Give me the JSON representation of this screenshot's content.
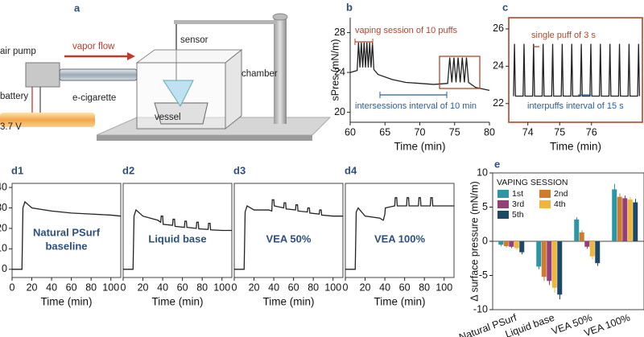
{
  "diagram": {
    "panel": "a",
    "labels": [
      "air pump",
      "vapor flow",
      "sensor",
      "chamber",
      "battery",
      "e-cigarette",
      "vessel",
      "3.7 V"
    ]
  },
  "chart_data": [
    {
      "type": "line",
      "panel": "b",
      "ylabel": "sPres (mN/m)",
      "xlabel": "Time (min)",
      "xlim": [
        60,
        80
      ],
      "xticks": [
        60,
        65,
        70,
        75,
        80
      ],
      "ylim": [
        19,
        29.5
      ],
      "yticks": [
        20,
        24,
        28
      ],
      "color": "#222222",
      "annotations": [
        "vaping session of 10 puffs",
        "intersessions interval of 10 min"
      ],
      "x": [
        60,
        61,
        61.2,
        61.4,
        61.6,
        61.8,
        62,
        62.2,
        62.4,
        62.6,
        62.8,
        63,
        63.2,
        63.4,
        64,
        66,
        68,
        70,
        72,
        74,
        74.3,
        74.6,
        74.9,
        75.2,
        75.5,
        75.8,
        76.1,
        76.4,
        76.7,
        77,
        78,
        80
      ],
      "values": [
        24,
        24.2,
        27,
        24.5,
        27,
        24.5,
        27,
        24.5,
        27,
        24.5,
        27,
        24.5,
        27,
        24.3,
        23.8,
        23.3,
        23,
        22.9,
        22.8,
        22.9,
        25.5,
        23,
        25.5,
        23,
        25.5,
        23,
        25.5,
        23,
        25.5,
        23,
        22.5,
        22.2
      ]
    },
    {
      "type": "line",
      "panel": "c",
      "xlabel": "Time (min)",
      "xlim": [
        73.4,
        77.6
      ],
      "xticks": [
        74,
        75,
        76
      ],
      "ylim": [
        21,
        26.6
      ],
      "yticks": [
        22,
        24,
        26
      ],
      "color": "#222222",
      "annotations": [
        "single puff of 3 s",
        "interpuffs interval of 15 s"
      ],
      "x": [
        73.55,
        73.58,
        73.61,
        73.85,
        73.88,
        73.91,
        74.15,
        74.18,
        74.21,
        74.45,
        74.48,
        74.51,
        74.75,
        74.78,
        74.81,
        75.05,
        75.08,
        75.11,
        75.35,
        75.38,
        75.41,
        75.65,
        75.68,
        75.71,
        75.95,
        75.98,
        76.01,
        76.25,
        76.28,
        76.31,
        76.55,
        76.58,
        76.61,
        76.85,
        76.88,
        76.91,
        77.15,
        77.18,
        77.21,
        77.45,
        77.48,
        77.51
      ],
      "values": [
        22.4,
        25.2,
        22.4,
        22.4,
        25.2,
        22.4,
        22.4,
        25.2,
        22.4,
        22.4,
        25.2,
        22.4,
        22.4,
        25.2,
        22.4,
        22.4,
        25.2,
        22.4,
        22.4,
        25.2,
        22.4,
        22.4,
        25.2,
        22.4,
        22.4,
        25.2,
        22.4,
        22.4,
        25.2,
        22.4,
        22.4,
        25.2,
        22.4,
        22.4,
        25.2,
        22.4,
        22.4,
        25.2,
        22.4,
        22.4,
        25.2,
        22.4
      ]
    },
    {
      "type": "line",
      "panel": "d1",
      "xlabel": "Time (min)",
      "xlim": [
        0,
        110
      ],
      "xticks": [
        0,
        20,
        40,
        60,
        80,
        100
      ],
      "ylim": [
        -4,
        42
      ],
      "yticks": [
        0,
        10,
        20,
        30,
        40
      ],
      "color": "#222222",
      "annotation_lines": [
        "Natural PSurf",
        "baseline"
      ],
      "x": [
        0,
        10,
        11,
        13,
        20,
        40,
        60,
        80,
        100,
        110
      ],
      "values": [
        0,
        0,
        30,
        33,
        30,
        28.5,
        27.5,
        27,
        26.5,
        26
      ]
    },
    {
      "type": "line",
      "panel": "d2",
      "xlabel": "Time (min)",
      "xlim": [
        0,
        110
      ],
      "xticks": [
        0,
        20,
        40,
        60,
        80,
        100
      ],
      "ylim": [
        -4,
        42
      ],
      "color": "#222222",
      "annotation_lines": [
        "Liquid base"
      ],
      "x": [
        0,
        10,
        11,
        13,
        20,
        35,
        38,
        38.5,
        40,
        40.5,
        50,
        50.5,
        52,
        52.5,
        62,
        62.5,
        64,
        64.5,
        74,
        74.5,
        76,
        76.5,
        86,
        86.5,
        88,
        88.5,
        100,
        110
      ],
      "values": [
        0,
        0,
        26,
        29,
        26,
        24,
        23,
        26,
        26,
        22,
        21.5,
        24.5,
        24.5,
        21,
        20.5,
        23.5,
        23.5,
        20.5,
        20,
        23,
        23,
        19.8,
        19.5,
        22.5,
        22.5,
        19.3,
        19,
        19
      ]
    },
    {
      "type": "line",
      "panel": "d3",
      "xlabel": "Time (min)",
      "xlim": [
        0,
        110
      ],
      "xticks": [
        0,
        20,
        40,
        60,
        80,
        100
      ],
      "ylim": [
        -4,
        42
      ],
      "color": "#222222",
      "annotation_lines": [
        "VEA 50%"
      ],
      "x": [
        0,
        10,
        11,
        13,
        20,
        35,
        38,
        38.5,
        40,
        40.5,
        50,
        50.5,
        52,
        52.5,
        62,
        62.5,
        64,
        64.5,
        74,
        74.5,
        76,
        76.5,
        86,
        86.5,
        88,
        88.5,
        100,
        110
      ],
      "values": [
        0,
        0,
        28,
        31,
        29,
        29,
        28.5,
        34,
        34,
        31,
        30,
        32.5,
        32.5,
        29.5,
        29,
        31.5,
        31.5,
        28.5,
        28,
        30,
        30,
        27.5,
        27,
        29,
        29,
        26.5,
        26,
        26
      ]
    },
    {
      "type": "line",
      "panel": "d4",
      "xlabel": "Time (min)",
      "xlim": [
        0,
        110
      ],
      "xticks": [
        0,
        20,
        40,
        60,
        80,
        100
      ],
      "ylim": [
        -4,
        42
      ],
      "color": "#222222",
      "annotation_lines": [
        "VEA 100%"
      ],
      "x": [
        0,
        10,
        11,
        13,
        20,
        35,
        38,
        38.5,
        40,
        40.5,
        50,
        50.5,
        52,
        52.5,
        62,
        62.5,
        64,
        64.5,
        74,
        74.5,
        76,
        76.5,
        86,
        86.5,
        88,
        88.5,
        100,
        110
      ],
      "values": [
        0,
        0,
        28,
        30,
        26,
        25,
        24,
        24,
        27,
        30,
        31,
        35,
        35,
        31,
        31,
        35,
        35,
        31,
        31,
        35,
        35,
        31,
        31,
        35,
        35,
        31,
        31,
        31
      ]
    },
    {
      "type": "bar",
      "panel": "e",
      "ylabel": "Δ surface pressure (mN/m)",
      "ylim": [
        -10,
        10
      ],
      "yticks": [
        -10,
        -5,
        0,
        5,
        10
      ],
      "legend_title": "VAPING SESSION",
      "legend": "upper-left",
      "categories": [
        "Natural PSurf",
        "Liquid base",
        "VEA 50%",
        "VEA 100%"
      ],
      "series": [
        {
          "name": "1st",
          "color": "#2a96a6",
          "values": [
            -0.5,
            -3.7,
            3.2,
            7.6
          ],
          "errors": [
            0.2,
            0.4,
            0.3,
            0.8
          ]
        },
        {
          "name": "2nd",
          "color": "#d07a2c",
          "values": [
            -0.7,
            -5.2,
            1.3,
            6.5
          ],
          "errors": [
            0.2,
            0.6,
            0.3,
            0.5
          ]
        },
        {
          "name": "3rd",
          "color": "#93407a",
          "values": [
            -0.8,
            -5.8,
            -0.8,
            6.3
          ],
          "errors": [
            0.2,
            0.6,
            0.3,
            0.4
          ]
        },
        {
          "name": "4th",
          "color": "#eeb63c",
          "values": [
            -1.0,
            -6.8,
            -2.2,
            6.1
          ],
          "errors": [
            0.3,
            0.7,
            0.4,
            0.4
          ]
        },
        {
          "name": "5th",
          "color": "#1d4866",
          "values": [
            -1.6,
            -7.8,
            -3.2,
            5.7
          ],
          "errors": [
            0.3,
            0.7,
            0.4,
            0.5
          ]
        }
      ]
    }
  ]
}
